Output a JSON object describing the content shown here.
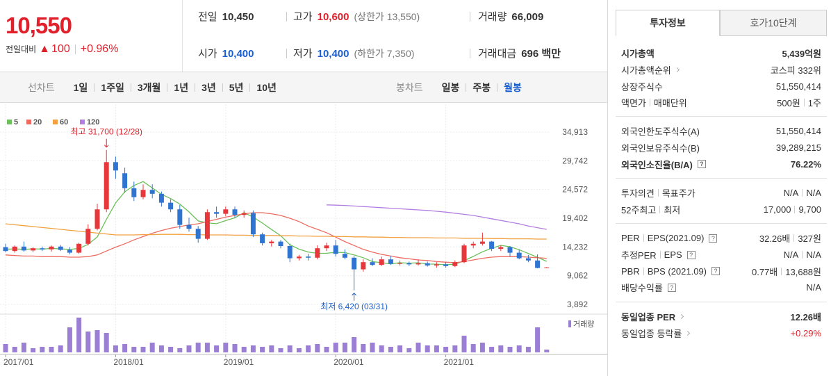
{
  "header": {
    "price": "10,550",
    "change": {
      "label": "전일대비",
      "arrow": "▲",
      "amount": "100",
      "rate": "+0.96%"
    },
    "stats": [
      [
        {
          "label": "전일",
          "value": "10,450"
        },
        {
          "label": "고가",
          "value": "10,600",
          "color": "#e0202b",
          "note": "(상한가 13,550)"
        },
        {
          "label": "거래량",
          "value": "66,009"
        }
      ],
      [
        {
          "label": "시가",
          "value": "10,400",
          "color": "#1a5fd0"
        },
        {
          "label": "저가",
          "value": "10,400",
          "color": "#1a5fd0",
          "note": "(하한가 7,350)"
        },
        {
          "label": "거래대금",
          "value": "696 백만"
        }
      ]
    ]
  },
  "toolbar": {
    "line_label": "선차트",
    "line_periods": [
      "1일",
      "1주일",
      "3개월",
      "1년",
      "3년",
      "5년",
      "10년"
    ],
    "candle_label": "봉차트",
    "candle_periods": [
      "일봉",
      "주봉",
      "월봉"
    ],
    "active_candle": 2
  },
  "chart_data": {
    "type": "candlestick",
    "categories": [
      "2017/01",
      null,
      null,
      null,
      null,
      null,
      null,
      null,
      null,
      null,
      null,
      null,
      "2018/01",
      null,
      null,
      null,
      null,
      null,
      null,
      null,
      null,
      null,
      null,
      null,
      "2019/01",
      null,
      null,
      null,
      null,
      null,
      null,
      null,
      null,
      null,
      null,
      null,
      "2020/01",
      null,
      null,
      null,
      null,
      null,
      null,
      null,
      null,
      null,
      null,
      null,
      "2021/01",
      null,
      null,
      null,
      null,
      null,
      null,
      null,
      null,
      null,
      null,
      null
    ],
    "open": [
      14200,
      13500,
      14300,
      13600,
      14000,
      13800,
      14300,
      13700,
      13200,
      14800,
      17500,
      21000,
      29500,
      27500,
      24800,
      23200,
      24500,
      23800,
      22200,
      21000,
      18200,
      17500,
      15700,
      20500,
      20200,
      21000,
      20000,
      20300,
      16500,
      14900,
      15200,
      14400,
      12200,
      12500,
      12300,
      14000,
      14500,
      13000,
      12300,
      10200,
      11500,
      11000,
      12000,
      11200,
      11300,
      11100,
      11300,
      10900,
      11100,
      10800,
      11500,
      14500,
      14800,
      15200,
      13900,
      14200,
      13200,
      12200,
      11800,
      10450
    ],
    "high": [
      14800,
      14500,
      15200,
      14200,
      14300,
      14500,
      14600,
      14200,
      15000,
      18300,
      22000,
      31700,
      30500,
      28500,
      26000,
      25500,
      25500,
      24200,
      22800,
      21800,
      19500,
      18000,
      21000,
      21500,
      21500,
      21500,
      20800,
      20800,
      16800,
      15500,
      15500,
      14800,
      12800,
      13000,
      14500,
      15000,
      15500,
      13800,
      12600,
      12000,
      12200,
      12500,
      12600,
      11800,
      11600,
      12000,
      11600,
      11500,
      11500,
      11800,
      14800,
      15200,
      16800,
      15300,
      14500,
      14400,
      13800,
      12800,
      12900,
      10600
    ],
    "low": [
      13300,
      13200,
      13400,
      13300,
      13500,
      13400,
      13500,
      12900,
      13000,
      14500,
      17200,
      20500,
      26500,
      24000,
      22500,
      22800,
      23000,
      21500,
      20500,
      17500,
      17000,
      15000,
      15500,
      19500,
      19800,
      19500,
      19500,
      16000,
      14500,
      14300,
      14000,
      11500,
      11800,
      11800,
      12000,
      13500,
      12500,
      12000,
      6420,
      9800,
      10800,
      10800,
      11000,
      10900,
      10800,
      10900,
      10700,
      10500,
      10500,
      10600,
      11300,
      14000,
      14500,
      13500,
      13500,
      12500,
      12000,
      11500,
      10400,
      10400
    ],
    "close": [
      13500,
      14300,
      13600,
      14000,
      13800,
      14300,
      13700,
      13200,
      14800,
      17500,
      21000,
      29500,
      28000,
      24800,
      23200,
      24500,
      23800,
      22200,
      21000,
      18200,
      17500,
      15700,
      20500,
      20200,
      21000,
      20000,
      20300,
      16500,
      14900,
      15200,
      14400,
      12200,
      12500,
      12300,
      14000,
      14500,
      13000,
      12300,
      10200,
      11500,
      11000,
      12000,
      11200,
      11300,
      11100,
      11300,
      10900,
      11100,
      10800,
      11500,
      14500,
      14800,
      15200,
      13900,
      14200,
      13200,
      12200,
      11800,
      10450,
      10550
    ],
    "up_color": "#e8373a",
    "down_color": "#2f74d0",
    "series": [
      {
        "name": "5",
        "color": "#6cc05a",
        "values": [
          13800,
          13900,
          13800,
          13900,
          13840,
          13980,
          13880,
          13800,
          13960,
          14700,
          16040,
          19200,
          22160,
          24160,
          25300,
          26000,
          24860,
          23700,
          22940,
          21940,
          20540,
          18920,
          18580,
          18420,
          18980,
          19480,
          20400,
          19600,
          18540,
          17380,
          16260,
          14640,
          13840,
          13320,
          13080,
          13100,
          13260,
          13220,
          12800,
          12300,
          11600,
          11400,
          11180,
          11400,
          11320,
          11380,
          11160,
          11140,
          11040,
          11120,
          11760,
          12540,
          13360,
          13980,
          14520,
          14260,
          13740,
          13060,
          12370,
          11640
        ]
      },
      {
        "name": "20",
        "color": "#ee6a60",
        "values": [
          12800,
          12700,
          12600,
          12600,
          12500,
          12500,
          12500,
          12400,
          12400,
          12500,
          12800,
          13500,
          14200,
          14800,
          15500,
          16100,
          16700,
          17200,
          17600,
          17900,
          18200,
          18400,
          18800,
          19200,
          19600,
          19900,
          20200,
          20400,
          20400,
          20200,
          19900,
          19400,
          18800,
          18000,
          17400,
          16800,
          16000,
          15200,
          14500,
          13800,
          13300,
          12900,
          12600,
          12300,
          12100,
          11900,
          11800,
          11600,
          11500,
          11400,
          11600,
          11900,
          12200,
          12400,
          12500,
          12500,
          12500,
          12400,
          12300,
          12200
        ]
      },
      {
        "name": "60",
        "color": "#f2a040",
        "values": [
          18400,
          18230,
          18070,
          17900,
          17730,
          17570,
          17400,
          17230,
          17070,
          16900,
          16730,
          16570,
          16400,
          16400,
          16400,
          16450,
          16450,
          16500,
          16500,
          16500,
          16450,
          16450,
          16400,
          16400,
          16400,
          16350,
          16350,
          16300,
          16300,
          16300,
          16250,
          16250,
          16200,
          16200,
          16150,
          16150,
          16100,
          16100,
          16050,
          16050,
          16000,
          16000,
          15950,
          15950,
          15900,
          15900,
          15900,
          15850,
          15850,
          15850,
          15800,
          15800,
          15800,
          15750,
          15750,
          15700,
          15700,
          15700,
          15650,
          15650
        ]
      },
      {
        "name": "120",
        "color": "#b27fe0",
        "values": [
          null,
          null,
          null,
          null,
          null,
          null,
          null,
          null,
          null,
          null,
          null,
          null,
          null,
          null,
          null,
          null,
          null,
          null,
          null,
          null,
          null,
          null,
          null,
          null,
          null,
          null,
          null,
          null,
          null,
          null,
          null,
          null,
          null,
          null,
          null,
          21800,
          21750,
          21700,
          21600,
          21500,
          21400,
          21300,
          21200,
          21100,
          21000,
          20900,
          20800,
          20650,
          20500,
          20300,
          20100,
          19900,
          19600,
          19300,
          19000,
          18700,
          18400,
          18000,
          17700,
          17400
        ]
      }
    ],
    "ylim": [
      2391,
      39916
    ],
    "yticks": [
      {
        "value": 3892,
        "label": "3,892"
      },
      {
        "value": 9062,
        "label": "9,062"
      },
      {
        "value": 14232,
        "label": "14,232"
      },
      {
        "value": 19402,
        "label": "19,402"
      },
      {
        "value": 24572,
        "label": "24,572"
      },
      {
        "value": 29742,
        "label": "29,742"
      },
      {
        "value": 34913,
        "label": "34,913"
      }
    ],
    "grid": true,
    "annotations": {
      "high": "최고 31,700 (12/28)",
      "low": "최저 6,420 (03/31)"
    },
    "volume": {
      "name": "거래량",
      "color": "#9b7fd4",
      "ylim": [
        0,
        5500000
      ],
      "values": [
        1200000,
        800000,
        1400000,
        600000,
        800000,
        800000,
        1000000,
        3600000,
        5000000,
        3000000,
        3200000,
        2800000,
        1000000,
        1200000,
        800000,
        800000,
        1400000,
        1000000,
        800000,
        600000,
        1000000,
        1400000,
        1400000,
        1000000,
        1400000,
        1200000,
        800000,
        1000000,
        800000,
        1000000,
        600000,
        1000000,
        600000,
        1000000,
        1200000,
        800000,
        1400000,
        1400000,
        2200000,
        1200000,
        1400000,
        1000000,
        800000,
        1000000,
        600000,
        1400000,
        1000000,
        1000000,
        800000,
        1000000,
        2400000,
        1200000,
        1400000,
        800000,
        1000000,
        800000,
        1000000,
        800000,
        3600000,
        400000
      ]
    }
  },
  "right_panel": {
    "tabs": [
      "투자정보",
      "호가10단계"
    ],
    "active_tab": 0,
    "help_icon": "?",
    "groups": [
      [
        {
          "label": [
            "시가총액"
          ],
          "value": [
            "5,439억원"
          ],
          "bold": true
        },
        {
          "label": [
            "시가총액순위"
          ],
          "value": [
            "코스피 332위"
          ],
          "link": true
        },
        {
          "label": [
            "상장주식수"
          ],
          "value": [
            "51,550,414"
          ]
        },
        {
          "label": [
            "액면가",
            "매매단위"
          ],
          "value": [
            "500원",
            "1주"
          ]
        }
      ],
      [
        {
          "label": [
            "외국인한도주식수(A)"
          ],
          "value": [
            "51,550,414"
          ]
        },
        {
          "label": [
            "외국인보유주식수(B)"
          ],
          "value": [
            "39,289,215"
          ]
        },
        {
          "label": [
            "외국인소진율(B/A)"
          ],
          "value": [
            "76.22%"
          ],
          "bold": true,
          "help": true
        }
      ],
      [
        {
          "label": [
            "투자의견",
            "목표주가"
          ],
          "value": [
            "N/A",
            "N/A"
          ]
        },
        {
          "label": [
            "52주최고",
            "최저"
          ],
          "value": [
            "17,000",
            "9,700"
          ]
        }
      ],
      [
        {
          "label": [
            "PER",
            "EPS(2021.09)"
          ],
          "value": [
            "32.26배",
            "327원"
          ],
          "help": true
        },
        {
          "label": [
            "추정PER",
            "EPS"
          ],
          "value": [
            "N/A",
            "N/A"
          ],
          "help": true
        },
        {
          "label": [
            "PBR",
            "BPS (2021.09)"
          ],
          "value": [
            "0.77배",
            "13,688원"
          ],
          "help": true
        },
        {
          "label": [
            "배당수익률"
          ],
          "value": [
            "N/A"
          ],
          "help": true
        }
      ],
      [
        {
          "label": [
            "동일업종 PER"
          ],
          "value": [
            "12.26배"
          ],
          "bold": true,
          "link": true
        },
        {
          "label": [
            "동일업종 등락률"
          ],
          "value": [
            "+0.29%"
          ],
          "link": true,
          "value_color": "#e0202b"
        }
      ]
    ]
  }
}
